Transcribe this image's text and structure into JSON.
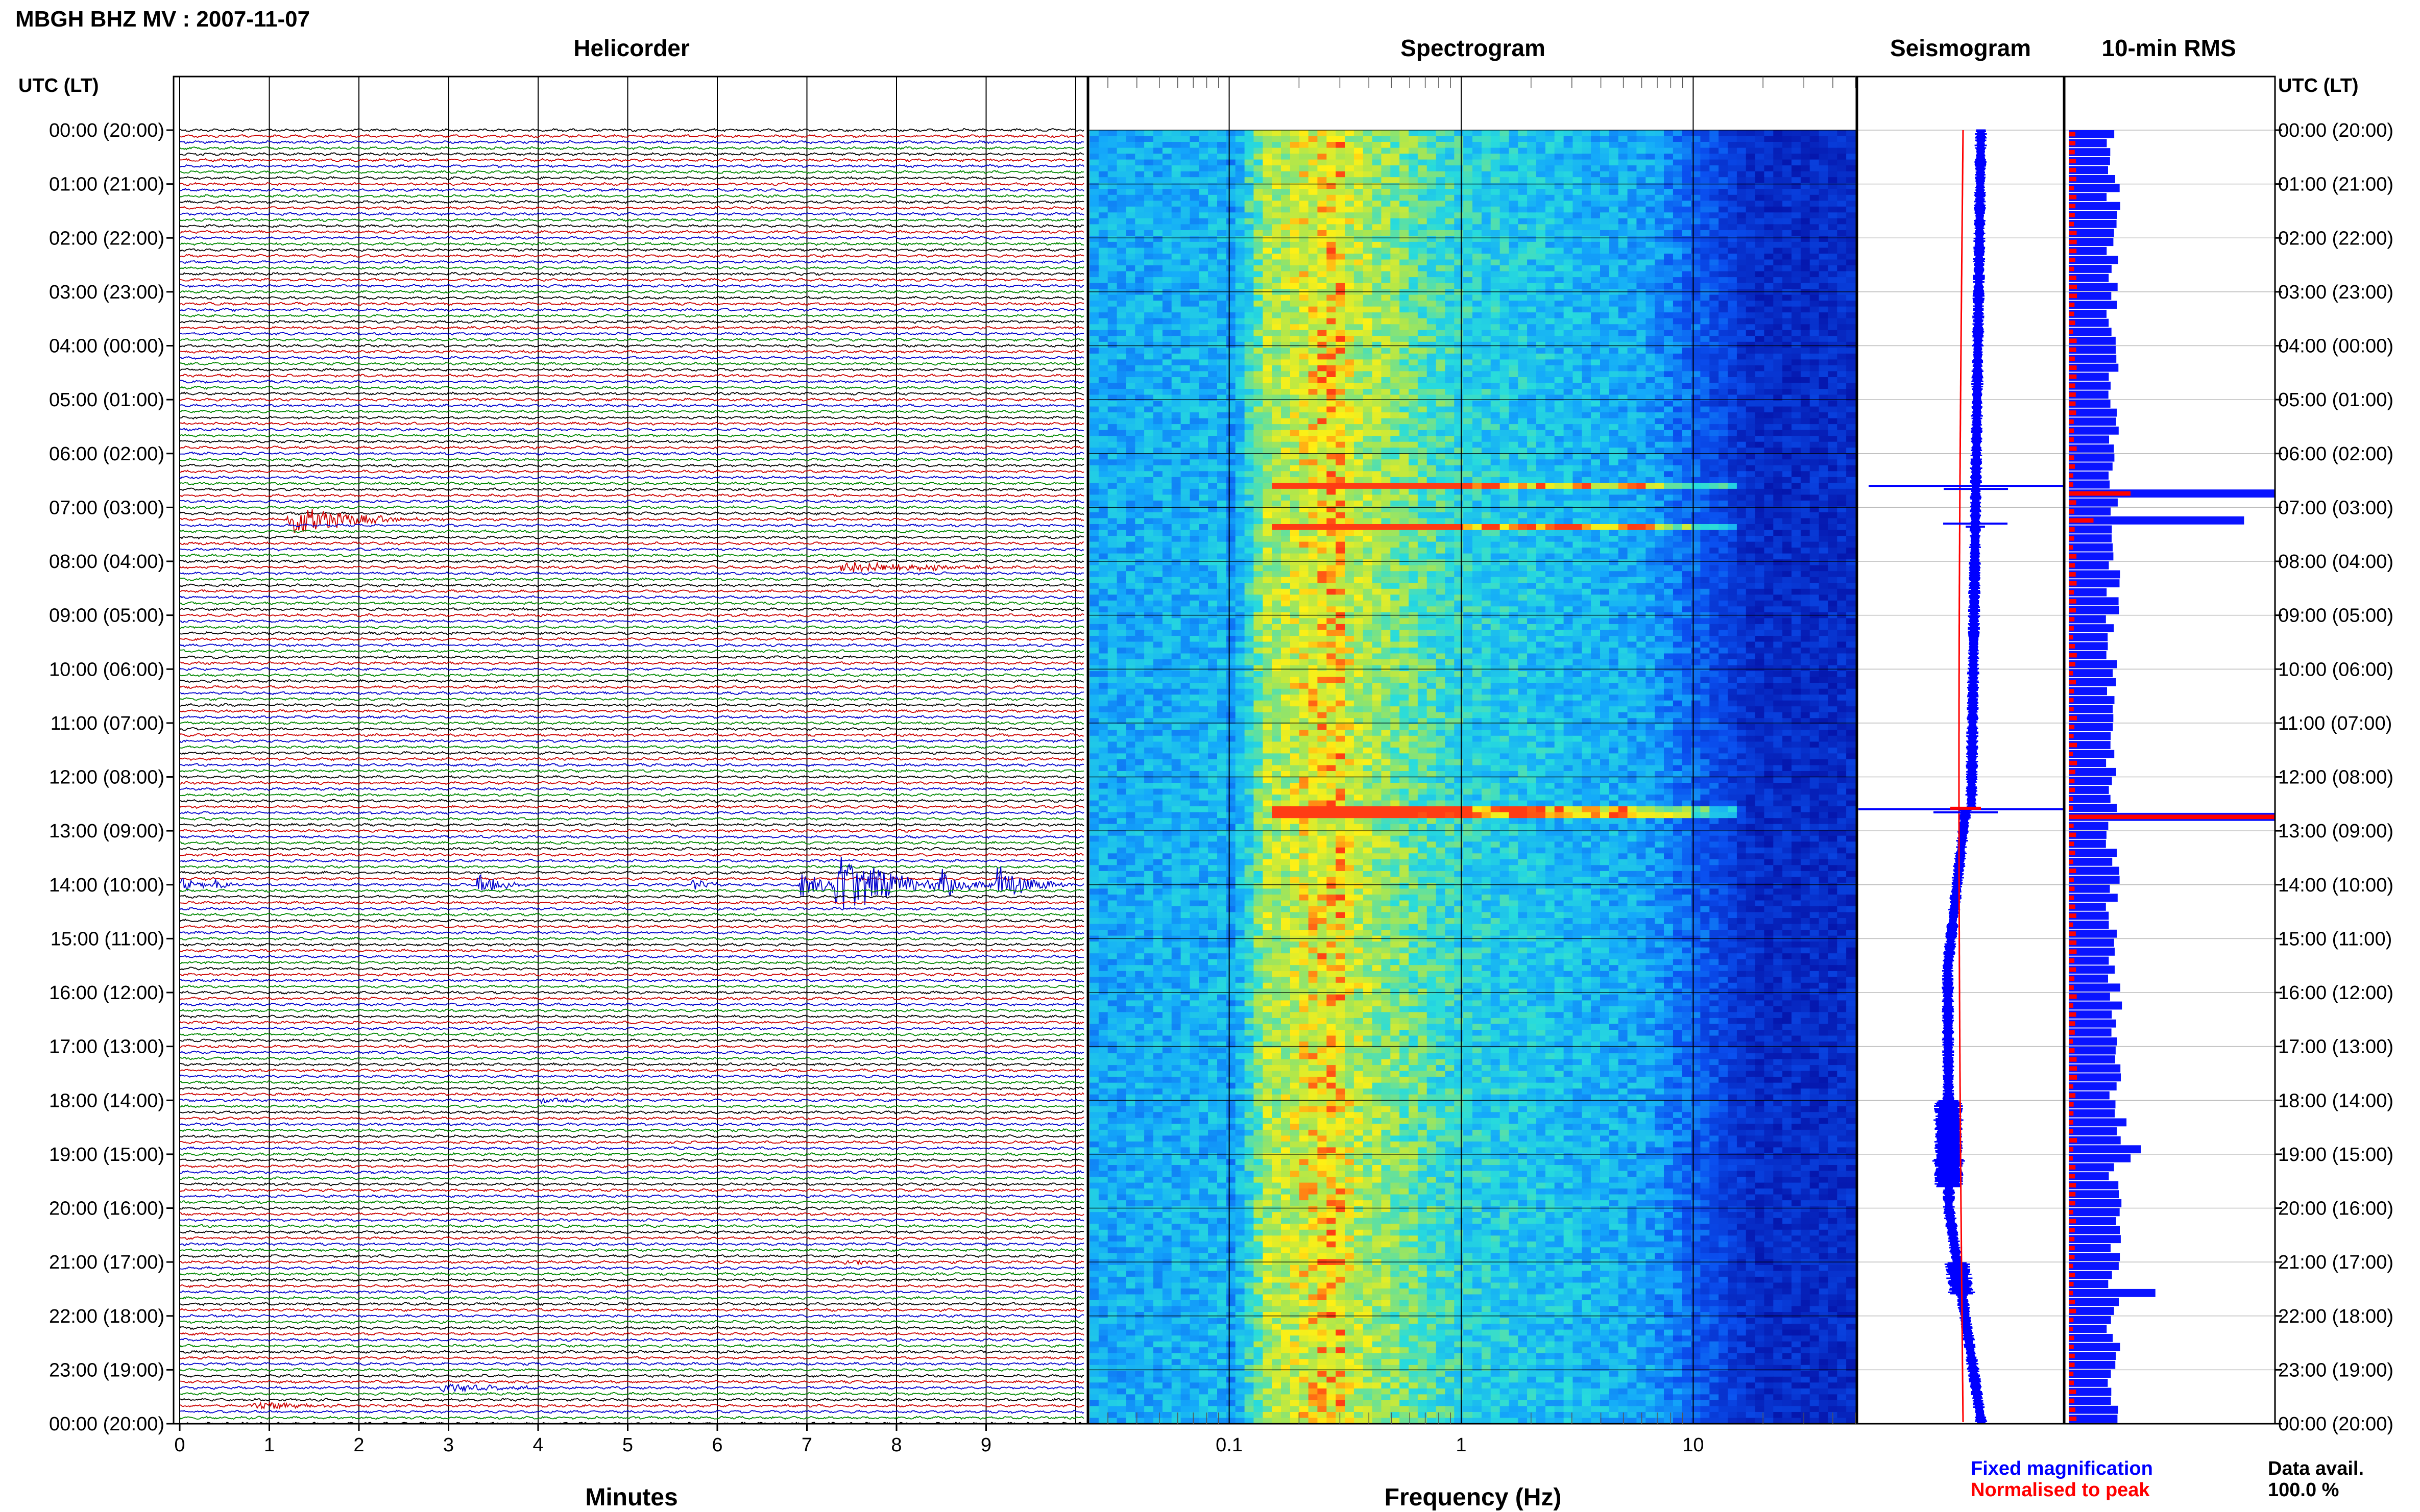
{
  "header": {
    "title": "MBGH BHZ MV : 2007-11-07"
  },
  "time_axis": {
    "label": "UTC (LT)",
    "ticks": [
      "00:00 (20:00)",
      "01:00 (21:00)",
      "02:00 (22:00)",
      "03:00 (23:00)",
      "04:00 (00:00)",
      "05:00 (01:00)",
      "06:00 (02:00)",
      "07:00 (03:00)",
      "08:00 (04:00)",
      "09:00 (05:00)",
      "10:00 (06:00)",
      "11:00 (07:00)",
      "12:00 (08:00)",
      "13:00 (09:00)",
      "14:00 (10:00)",
      "15:00 (11:00)",
      "16:00 (12:00)",
      "17:00 (13:00)",
      "18:00 (14:00)",
      "19:00 (15:00)",
      "20:00 (16:00)",
      "21:00 (17:00)",
      "22:00 (18:00)",
      "23:00 (19:00)",
      "00:00 (20:00)"
    ]
  },
  "legend": {
    "fixed": "Fixed magnification",
    "normalised": "Normalised to peak",
    "fixed_color": "#0000ff",
    "normalised_color": "#ff0000",
    "data_avail_label": "Data avail.",
    "data_avail_value": "100.0 %"
  },
  "chart_data": [
    {
      "type": "line",
      "title": "Helicorder",
      "xlabel": "Minutes",
      "x_ticks": [
        "0",
        "1",
        "2",
        "3",
        "4",
        "5",
        "6",
        "7",
        "8",
        "9"
      ],
      "xlim": [
        0,
        10
      ],
      "trace_colors": [
        "#000000",
        "#cc0000",
        "#0000cc",
        "#008800"
      ],
      "events": [
        {
          "row": 65,
          "start": 1.2,
          "dur": 1.8,
          "amp": 3.2
        },
        {
          "row": 73,
          "start": 7.35,
          "dur": 2.6,
          "amp": 1.2
        },
        {
          "row": 126,
          "start": 0.0,
          "dur": 0.5,
          "amp": 1.4
        },
        {
          "row": 126,
          "start": 0.35,
          "dur": 0.5,
          "amp": 1.2
        },
        {
          "row": 126,
          "start": 3.3,
          "dur": 0.6,
          "amp": 2.6
        },
        {
          "row": 126,
          "start": 5.7,
          "dur": 0.5,
          "amp": 1.4
        },
        {
          "row": 126,
          "start": 6.9,
          "dur": 1.0,
          "amp": 2.4
        },
        {
          "row": 126,
          "start": 7.3,
          "dur": 1.6,
          "amp": 7.0
        },
        {
          "row": 126,
          "start": 8.45,
          "dur": 0.8,
          "amp": 3.0
        },
        {
          "row": 126,
          "start": 9.1,
          "dur": 0.9,
          "amp": 4.0
        },
        {
          "row": 162,
          "start": 4.0,
          "dur": 1.8,
          "amp": 0.5
        },
        {
          "row": 189,
          "start": 7.4,
          "dur": 1.4,
          "amp": 0.5
        },
        {
          "row": 213,
          "start": 0.8,
          "dur": 1.4,
          "amp": 0.9
        },
        {
          "row": 210,
          "start": 2.9,
          "dur": 1.8,
          "amp": 0.8
        }
      ]
    },
    {
      "type": "heatmap",
      "title": "Spectrogram",
      "xlabel": "Frequency (Hz)",
      "x_scale": "log",
      "xlim": [
        0.025,
        50
      ],
      "x_ticks": [
        "0.1",
        "1",
        "10"
      ],
      "highlight_hours": [
        6.55,
        7.35,
        12.6
      ]
    },
    {
      "type": "line",
      "title": "Seismogram",
      "series": [
        {
          "color": "#0000ff"
        },
        {
          "color": "#ff0000"
        }
      ],
      "spikes": [
        {
          "hour": 6.6,
          "blue": 1.0
        },
        {
          "hour": 7.3,
          "blue": 0.3
        },
        {
          "hour": 12.6,
          "blue": 1.0,
          "red": 0.15
        }
      ]
    },
    {
      "type": "bar",
      "title": "10-min RMS",
      "orientation": "horizontal",
      "big_bars": [
        {
          "hour": 6.6,
          "blue": 1.0,
          "red": 0.3
        },
        {
          "hour": 7.2,
          "blue": 0.85,
          "red": 0.12
        },
        {
          "hour": 12.6,
          "blue": 1.0,
          "red": 1.0
        },
        {
          "hour": 18.4,
          "blue": 0.28
        },
        {
          "hour": 18.8,
          "blue": 0.35
        },
        {
          "hour": 19.0,
          "blue": 0.3
        },
        {
          "hour": 21.5,
          "blue": 0.42
        }
      ]
    }
  ]
}
